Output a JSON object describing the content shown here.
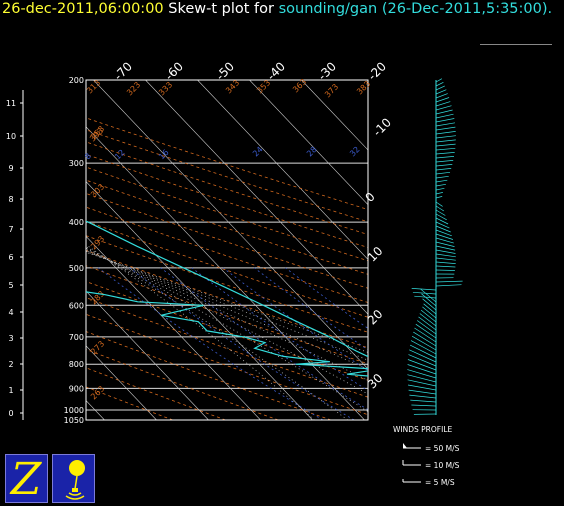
{
  "header": {
    "date_label": "26-dec-2011,06:00:00",
    "plot_label": "Skew-t plot for",
    "station": "sounding/gan",
    "valid_time": "(26-Dec-2011,5:35:00)."
  },
  "colors": {
    "background": "#000000",
    "profile": "#33dddd",
    "frame": "#ffffff",
    "isotherm": "#cccccc",
    "dry_adiabat": "#d2691e",
    "mixing_ratio": "#3b5bcc",
    "moist_adiabat": "#cccccc"
  },
  "icons": [
    "z-logo-icon",
    "balloon-icon"
  ],
  "chart_data": {
    "type": "skew-t",
    "pressure_levels": [
      "200",
      "300",
      "400",
      "500",
      "600",
      "700",
      "800",
      "900",
      "1000",
      "1050"
    ],
    "height_labels": [
      "11",
      "10",
      "9",
      "8",
      "7",
      "6",
      "5",
      "4",
      "3",
      "2",
      "1",
      "0"
    ],
    "temp_labels_top": [
      "-70",
      "-60",
      "-50",
      "-40",
      "-30",
      "-20"
    ],
    "temp_labels_right": [
      "-10",
      "0",
      "10",
      "20",
      "30"
    ],
    "theta_labels": [
      "313",
      "323",
      "333",
      "343",
      "353",
      "363",
      "373",
      "383",
      "393",
      "303",
      "293",
      "283",
      "273",
      "263",
      "253"
    ],
    "mixing_ratio_labels": [
      "8",
      "12",
      "16",
      "24",
      "28",
      "32"
    ],
    "sounding_temperature": [
      [
        1000,
        28
      ],
      [
        970,
        25
      ],
      [
        940,
        22.5
      ],
      [
        925,
        21.5
      ],
      [
        900,
        20
      ],
      [
        850,
        17
      ],
      [
        800,
        14
      ],
      [
        750,
        11
      ],
      [
        700,
        8.5
      ],
      [
        650,
        5
      ],
      [
        600,
        1.5
      ],
      [
        550,
        -2.5
      ],
      [
        500,
        -7
      ],
      [
        450,
        -12
      ],
      [
        400,
        -17
      ],
      [
        350,
        -25
      ],
      [
        300,
        -34
      ],
      [
        250,
        -45
      ],
      [
        200,
        -58
      ]
    ],
    "sounding_dewpoint": [
      [
        1000,
        25
      ],
      [
        975,
        22
      ],
      [
        950,
        21
      ],
      [
        925,
        19
      ],
      [
        900,
        19
      ],
      [
        860,
        15
      ],
      [
        840,
        5
      ],
      [
        820,
        12
      ],
      [
        800,
        -3
      ],
      [
        790,
        4
      ],
      [
        770,
        -4
      ],
      [
        740,
        -8
      ],
      [
        720,
        -5
      ],
      [
        700,
        -8
      ],
      [
        680,
        -14
      ],
      [
        650,
        -14
      ],
      [
        630,
        -20
      ],
      [
        600,
        -10
      ],
      [
        590,
        -22
      ],
      [
        570,
        -27
      ],
      [
        550,
        -35
      ],
      [
        520,
        -34
      ],
      [
        500,
        -40
      ],
      [
        480,
        -35
      ],
      [
        460,
        -38
      ],
      [
        430,
        -40
      ],
      [
        415,
        -47
      ],
      [
        400,
        -44
      ],
      [
        380,
        -42
      ],
      [
        370,
        -43
      ],
      [
        360,
        -43
      ],
      [
        350,
        -40
      ],
      [
        330,
        -38
      ],
      [
        310,
        -36
      ],
      [
        300,
        -40
      ],
      [
        280,
        -48
      ],
      [
        250,
        -52
      ],
      [
        220,
        -58
      ],
      [
        200,
        -67
      ]
    ],
    "wind_legend": {
      "title": "WINDS PROFILE",
      "items": [
        "= 50 M/S",
        "= 10 M/S",
        "= 5 M/S"
      ]
    }
  }
}
